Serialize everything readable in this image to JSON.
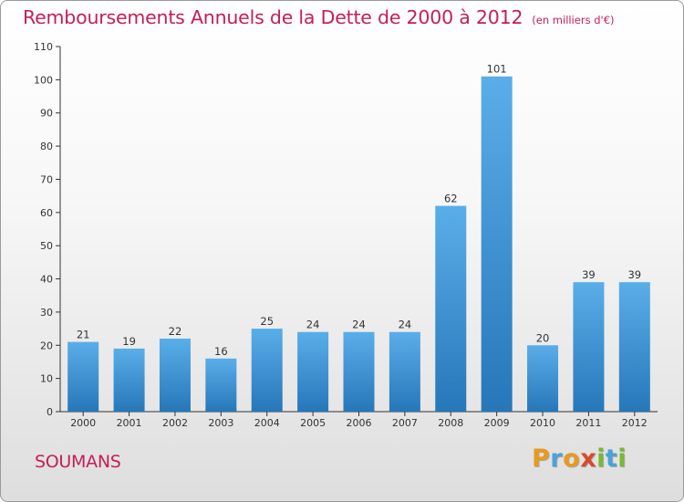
{
  "header": {
    "title": "Remboursements Annuels de la Dette de 2000 à 2012",
    "unit": "(en milliers d'€)"
  },
  "footer": {
    "commune": "SOUMANS",
    "logo_text": "Proxiti"
  },
  "colors": {
    "title": "#c41e5a",
    "bar_top": "#5aaee8",
    "bar_bottom": "#2677b9",
    "logo_letters": [
      "#e89a1f",
      "#4aa3d8",
      "#e89a1f",
      "#d94a2a",
      "#7ab832",
      "#4aa3d8",
      "#7ab832"
    ]
  },
  "chart_data": {
    "type": "bar",
    "categories": [
      "2000",
      "2001",
      "2002",
      "2003",
      "2004",
      "2005",
      "2006",
      "2007",
      "2008",
      "2009",
      "2010",
      "2011",
      "2012"
    ],
    "values": [
      21,
      19,
      22,
      16,
      25,
      24,
      24,
      24,
      62,
      101,
      20,
      39,
      39
    ],
    "title": "Remboursements Annuels de la Dette de 2000 à 2012",
    "unit": "(en milliers d'€)",
    "xlabel": "",
    "ylabel": "",
    "ylim": [
      0,
      110
    ],
    "yticks": [
      0,
      10,
      20,
      30,
      40,
      50,
      60,
      70,
      80,
      90,
      100,
      110
    ],
    "grid": false,
    "legend": "none",
    "data_labels": true
  }
}
